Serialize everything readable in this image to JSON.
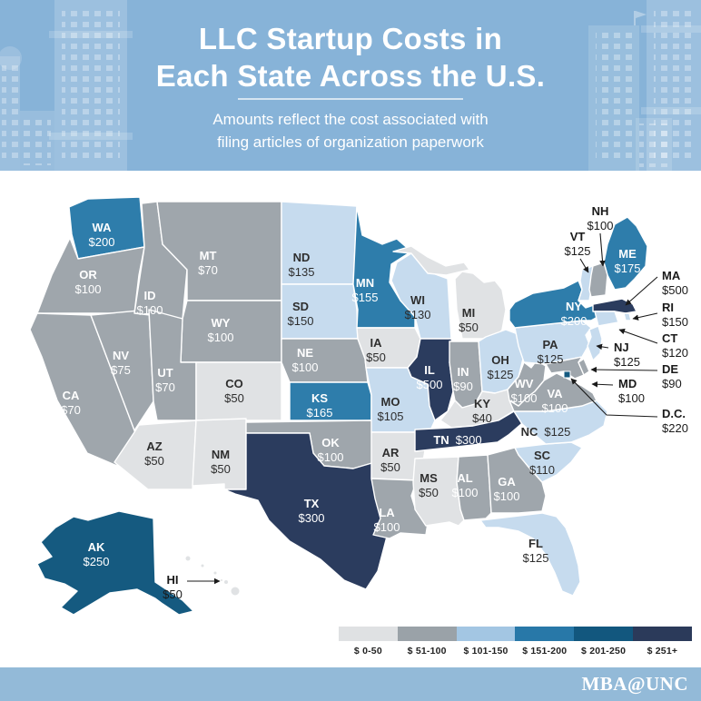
{
  "header": {
    "title_line1": "LLC Startup Costs in",
    "title_line2": "Each State Across the U.S.",
    "subtitle_line1": "Amounts reflect the cost associated with",
    "subtitle_line2": "filing articles of organization paperwork"
  },
  "legend": {
    "items": [
      {
        "label": "$ 0-50",
        "color": "#dfe1e3"
      },
      {
        "label": "$ 51-100",
        "color": "#9aa2a8"
      },
      {
        "label": "$ 101-150",
        "color": "#a3c6e3"
      },
      {
        "label": "$ 151-200",
        "color": "#2878a8"
      },
      {
        "label": "$ 201-250",
        "color": "#12577e"
      },
      {
        "label": "$ 251+",
        "color": "#2b3a5a"
      }
    ]
  },
  "map": {
    "fills": {
      "cat0": "#e0e2e4",
      "cat1": "#9fa6ac",
      "cat2": "#c6dbee",
      "cat3": "#2e7dab",
      "cat4": "#155a80",
      "cat5": "#2b3c5e"
    },
    "dark_text": "#2e2e2e",
    "light_text": "#ffffff",
    "callout_text": "#1a1a1a"
  },
  "states": [
    {
      "id": "WA",
      "label": "WA",
      "cost": "$200",
      "category": "cat3"
    },
    {
      "id": "OR",
      "label": "OR",
      "cost": "$100",
      "category": "cat1"
    },
    {
      "id": "CA",
      "label": "CA",
      "cost": "$70",
      "category": "cat1"
    },
    {
      "id": "NV",
      "label": "NV",
      "cost": "$75",
      "category": "cat1"
    },
    {
      "id": "ID",
      "label": "ID",
      "cost": "$100",
      "category": "cat1"
    },
    {
      "id": "MT",
      "label": "MT",
      "cost": "$70",
      "category": "cat1"
    },
    {
      "id": "WY",
      "label": "WY",
      "cost": "$100",
      "category": "cat1"
    },
    {
      "id": "UT",
      "label": "UT",
      "cost": "$70",
      "category": "cat1"
    },
    {
      "id": "CO",
      "label": "CO",
      "cost": "$50",
      "category": "cat0"
    },
    {
      "id": "AZ",
      "label": "AZ",
      "cost": "$50",
      "category": "cat0"
    },
    {
      "id": "NM",
      "label": "NM",
      "cost": "$50",
      "category": "cat0"
    },
    {
      "id": "ND",
      "label": "ND",
      "cost": "$135",
      "category": "cat2"
    },
    {
      "id": "SD",
      "label": "SD",
      "cost": "$150",
      "category": "cat2"
    },
    {
      "id": "NE",
      "label": "NE",
      "cost": "$100",
      "category": "cat1"
    },
    {
      "id": "KS",
      "label": "KS",
      "cost": "$165",
      "category": "cat3"
    },
    {
      "id": "OK",
      "label": "OK",
      "cost": "$100",
      "category": "cat1"
    },
    {
      "id": "TX",
      "label": "TX",
      "cost": "$300",
      "category": "cat5"
    },
    {
      "id": "MN",
      "label": "MN",
      "cost": "$155",
      "category": "cat3"
    },
    {
      "id": "IA",
      "label": "IA",
      "cost": "$50",
      "category": "cat0"
    },
    {
      "id": "MO",
      "label": "MO",
      "cost": "$105",
      "category": "cat2"
    },
    {
      "id": "AR",
      "label": "AR",
      "cost": "$50",
      "category": "cat0"
    },
    {
      "id": "LA",
      "label": "LA",
      "cost": "$100",
      "category": "cat1"
    },
    {
      "id": "WI",
      "label": "WI",
      "cost": "$130",
      "category": "cat2"
    },
    {
      "id": "IL",
      "label": "IL",
      "cost": "$500",
      "category": "cat5"
    },
    {
      "id": "MI",
      "label": "MI",
      "cost": "$50",
      "category": "cat0"
    },
    {
      "id": "IN",
      "label": "IN",
      "cost": "$90",
      "category": "cat1"
    },
    {
      "id": "OH",
      "label": "OH",
      "cost": "$125",
      "category": "cat2"
    },
    {
      "id": "KY",
      "label": "KY",
      "cost": "$40",
      "category": "cat0"
    },
    {
      "id": "TN",
      "label": "TN",
      "cost": "$300",
      "category": "cat5"
    },
    {
      "id": "MS",
      "label": "MS",
      "cost": "$50",
      "category": "cat0"
    },
    {
      "id": "AL",
      "label": "AL",
      "cost": "$100",
      "category": "cat1"
    },
    {
      "id": "GA",
      "label": "GA",
      "cost": "$100",
      "category": "cat1"
    },
    {
      "id": "FL",
      "label": "FL",
      "cost": "$125",
      "category": "cat2"
    },
    {
      "id": "SC",
      "label": "SC",
      "cost": "$110",
      "category": "cat2"
    },
    {
      "id": "NC",
      "label": "NC",
      "cost": "$125",
      "category": "cat2"
    },
    {
      "id": "VA",
      "label": "VA",
      "cost": "$100",
      "category": "cat1"
    },
    {
      "id": "WV",
      "label": "WV",
      "cost": "$100",
      "category": "cat1"
    },
    {
      "id": "PA",
      "label": "PA",
      "cost": "$125",
      "category": "cat2"
    },
    {
      "id": "NY",
      "label": "NY",
      "cost": "$200",
      "category": "cat3"
    },
    {
      "id": "ME",
      "label": "ME",
      "cost": "$175",
      "category": "cat3"
    },
    {
      "id": "VT",
      "label": "VT",
      "cost": "$125",
      "category": "cat2"
    },
    {
      "id": "NH",
      "label": "NH",
      "cost": "$100",
      "category": "cat1"
    },
    {
      "id": "MA",
      "label": "MA",
      "cost": "$500",
      "category": "cat5"
    },
    {
      "id": "RI",
      "label": "RI",
      "cost": "$150",
      "category": "cat2"
    },
    {
      "id": "CT",
      "label": "CT",
      "cost": "$120",
      "category": "cat2"
    },
    {
      "id": "NJ",
      "label": "NJ",
      "cost": "$125",
      "category": "cat2"
    },
    {
      "id": "MD",
      "label": "MD",
      "cost": "$100",
      "category": "cat1"
    },
    {
      "id": "DE",
      "label": "DE",
      "cost": "$90",
      "category": "cat1"
    },
    {
      "id": "DC",
      "label": "D.C.",
      "cost": "$220",
      "category": "cat4"
    },
    {
      "id": "AK",
      "label": "AK",
      "cost": "$250",
      "category": "cat4"
    },
    {
      "id": "HI",
      "label": "HI",
      "cost": "$50",
      "category": "cat0"
    }
  ],
  "footer": {
    "brand": "MBA@UNC"
  }
}
